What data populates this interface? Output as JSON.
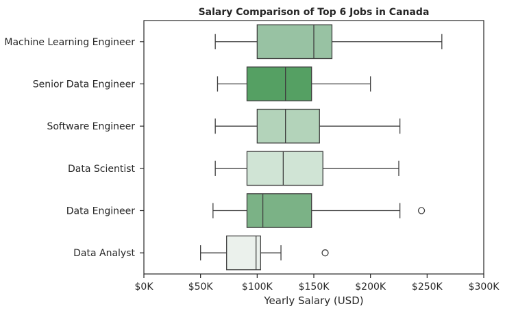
{
  "chart_data": {
    "type": "boxplot",
    "orientation": "horizontal",
    "title": "Salary Comparison of Top 6 Jobs in Canada",
    "xlabel": "Yearly Salary (USD)",
    "ylabel": "",
    "xlim": [
      0,
      300000
    ],
    "x_ticks": [
      0,
      50000,
      100000,
      150000,
      200000,
      250000,
      300000
    ],
    "x_tick_labels": [
      "$0K",
      "$50K",
      "$100K",
      "$150K",
      "$200K",
      "$250K",
      "$300K"
    ],
    "grid": false,
    "categories": [
      "Machine Learning Engineer",
      "Senior Data Engineer",
      "Software Engineer",
      "Data Scientist",
      "Data Engineer",
      "Data Analyst"
    ],
    "boxes": [
      {
        "category": "Machine Learning Engineer",
        "whisker_low": 63000,
        "q1": 100000,
        "median": 150000,
        "q3": 166000,
        "whisker_high": 263000,
        "outliers": [],
        "color": "#98c2a3"
      },
      {
        "category": "Senior Data Engineer",
        "whisker_low": 65000,
        "q1": 91000,
        "median": 125000,
        "q3": 148000,
        "whisker_high": 200000,
        "outliers": [],
        "color": "#55a063"
      },
      {
        "category": "Software Engineer",
        "whisker_low": 63000,
        "q1": 100000,
        "median": 125000,
        "q3": 155000,
        "whisker_high": 226000,
        "outliers": [],
        "color": "#b3d3ba"
      },
      {
        "category": "Data Scientist",
        "whisker_low": 63000,
        "q1": 91000,
        "median": 123000,
        "q3": 158000,
        "whisker_high": 225000,
        "outliers": [],
        "color": "#d0e4d5"
      },
      {
        "category": "Data Engineer",
        "whisker_low": 61000,
        "q1": 91000,
        "median": 105000,
        "q3": 148000,
        "whisker_high": 226000,
        "outliers": [
          245000
        ],
        "color": "#7bb286"
      },
      {
        "category": "Data Analyst",
        "whisker_low": 50000,
        "q1": 73000,
        "median": 99000,
        "q3": 103000,
        "whisker_high": 121000,
        "outliers": [
          160000
        ],
        "color": "#ebf1ec"
      }
    ],
    "colors": {
      "line": "#3f3f3f",
      "text": "#262626",
      "frame": "#262626"
    }
  }
}
